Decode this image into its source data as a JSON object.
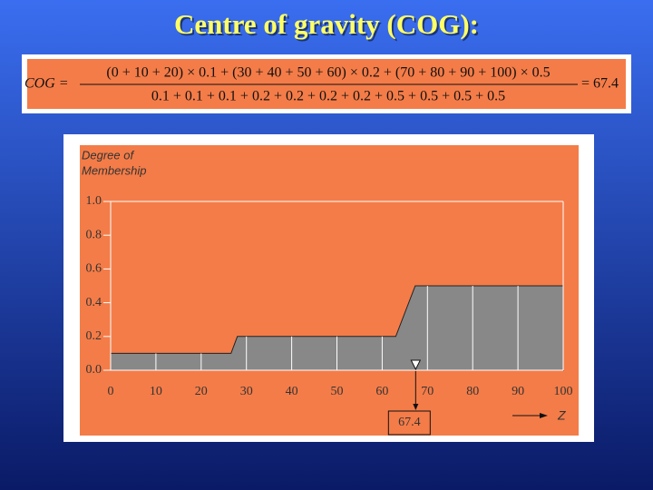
{
  "title": "Centre of gravity (COG):",
  "formula": {
    "lhs": "COG =",
    "numerator": "(0 + 10 + 20) × 0.1 + (30 + 40 + 50 + 60) × 0.2 + (70 + 80 + 90 + 100) × 0.5",
    "denominator": "0.1 + 0.1 + 0.1 + 0.2 + 0.2 + 0.2 + 0.2 + 0.5 + 0.5 + 0.5 + 0.5",
    "result": "= 67.4"
  },
  "chart_data": {
    "type": "area",
    "y_label": [
      "Degree of",
      "Membership"
    ],
    "x_label": "Z",
    "x": [
      0,
      26.6,
      28,
      63,
      67.3,
      100
    ],
    "values": [
      0.1,
      0.1,
      0.2,
      0.2,
      0.5,
      0.5
    ],
    "color": "#888888",
    "xlim": [
      0,
      100
    ],
    "ylim": [
      0,
      1
    ],
    "xticks": [
      0,
      10,
      20,
      30,
      40,
      50,
      60,
      70,
      80,
      90,
      100
    ],
    "yticks": [
      {
        "value": 0,
        "label": "0.0"
      },
      0.2,
      0.4,
      0.6,
      0.8,
      {
        "value": 1,
        "label": "1.0"
      }
    ],
    "cog": {
      "value": 67.4,
      "label": "67.4"
    }
  }
}
